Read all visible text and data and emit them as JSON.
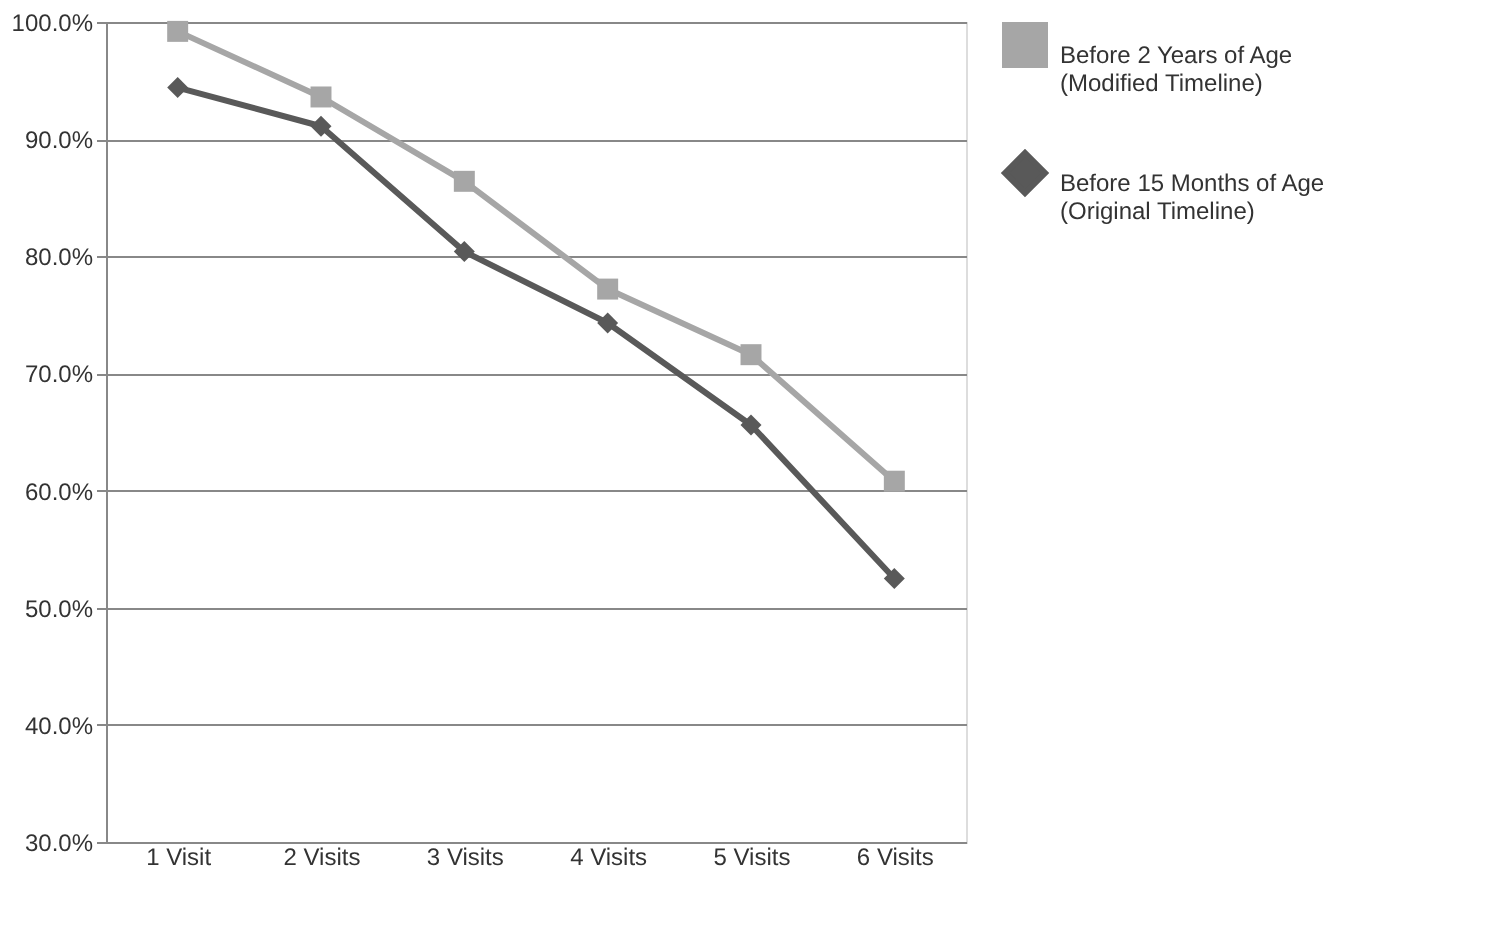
{
  "chart_data": {
    "type": "line",
    "categories": [
      "1 Visit",
      "2 Visits",
      "3 Visits",
      "4 Visits",
      "5 Visits",
      "6 Visits"
    ],
    "series": [
      {
        "name": "Before 2 Years of Age\n(Modified Timeline)",
        "color": "#a6a6a6",
        "marker": "square",
        "values": [
          99.2,
          93.6,
          86.4,
          77.2,
          71.6,
          60.8
        ]
      },
      {
        "name": "Before 15 Months of Age\n(Original Timeline)",
        "color": "#595959",
        "marker": "diamond",
        "values": [
          94.4,
          91.1,
          80.4,
          74.3,
          65.6,
          52.5
        ]
      }
    ],
    "ylim": [
      30,
      100
    ],
    "yticks": [
      {
        "value": 30,
        "label": "30.0%"
      },
      {
        "value": 40,
        "label": "40.0%"
      },
      {
        "value": 50,
        "label": "50.0%"
      },
      {
        "value": 60,
        "label": "60.0%"
      },
      {
        "value": 70,
        "label": "70.0%"
      },
      {
        "value": 80,
        "label": "80.0%"
      },
      {
        "value": 90,
        "label": "90.0%"
      },
      {
        "value": 100,
        "label": "100.0%"
      }
    ],
    "grid": "y",
    "legend": "right",
    "line_style": "solid"
  }
}
